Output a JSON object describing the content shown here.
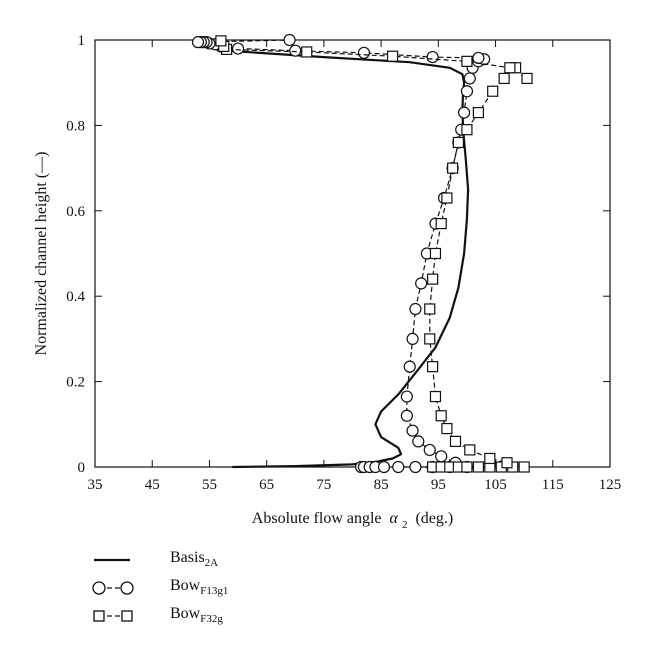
{
  "chart_data": {
    "type": "line",
    "xlabel": "Absolute flow angle",
    "xlabel_symbol": "α",
    "xlabel_subscript": "2",
    "xlabel_unit": "(deg.)",
    "ylabel": "Normalized channel height (—)",
    "xlim": [
      35,
      125
    ],
    "ylim": [
      0,
      1
    ],
    "xticks": [
      "35",
      "45",
      "55",
      "65",
      "75",
      "85",
      "95",
      "105",
      "115",
      "125"
    ],
    "yticks": [
      "0",
      "0.2",
      "0.4",
      "0.6",
      "0.8",
      "1"
    ],
    "grid": false,
    "legend_position": "below",
    "series": [
      {
        "name": "Basis",
        "name_subscript": "2A",
        "marker": "none",
        "line": "solid",
        "x": [
          59,
          70,
          80,
          84,
          87,
          88.5,
          88,
          85,
          84,
          85,
          88,
          91,
          94.5,
          97,
          98.5,
          99.5,
          100,
          100.2,
          99.8,
          99.4,
          99.2,
          99.3,
          99.5,
          99.2,
          97,
          90,
          75,
          58,
          54
        ],
        "y": [
          0.0,
          0.002,
          0.006,
          0.012,
          0.02,
          0.03,
          0.045,
          0.07,
          0.1,
          0.13,
          0.17,
          0.22,
          0.28,
          0.35,
          0.42,
          0.5,
          0.58,
          0.65,
          0.72,
          0.78,
          0.83,
          0.87,
          0.9,
          0.92,
          0.935,
          0.948,
          0.96,
          0.975,
          0.992
        ]
      },
      {
        "name": "Bow",
        "name_subscript": "F13g1",
        "marker": "circle",
        "line": "dashed",
        "x": [
          81.5,
          82,
          83,
          84,
          85.5,
          88,
          91,
          94,
          97,
          100,
          98,
          95.5,
          93.5,
          91.5,
          90.5,
          89.5,
          89.5,
          90,
          90.5,
          91,
          92,
          93,
          94.5,
          96,
          97.5,
          98.5,
          99,
          99.5,
          100,
          100.5,
          101,
          102,
          103,
          102,
          94,
          82,
          70,
          60,
          57,
          56,
          55,
          54.5,
          54,
          53.5,
          53,
          69
        ],
        "y": [
          0.0,
          0.0,
          0.0,
          0.0,
          0.0,
          0.0,
          0.0,
          0.0,
          0.0,
          0.0,
          0.01,
          0.025,
          0.04,
          0.06,
          0.085,
          0.12,
          0.165,
          0.235,
          0.3,
          0.37,
          0.43,
          0.5,
          0.57,
          0.63,
          0.7,
          0.76,
          0.79,
          0.83,
          0.88,
          0.91,
          0.935,
          0.95,
          0.955,
          0.958,
          0.96,
          0.97,
          0.975,
          0.98,
          0.985,
          0.99,
          0.992,
          0.995,
          0.995,
          0.995,
          0.995,
          1.0
        ]
      },
      {
        "name": "Bow",
        "name_subscript": "F32g",
        "marker": "square",
        "line": "dashed",
        "x": [
          94,
          95.5,
          97,
          98.5,
          100,
          102,
          104,
          106,
          108,
          110,
          107,
          104,
          100.5,
          98,
          96.5,
          95.5,
          94.5,
          94,
          93.5,
          93.5,
          94,
          94.5,
          95.5,
          96.5,
          97.5,
          98.5,
          100,
          102,
          104.5,
          106.5,
          108.5,
          110.5,
          107.5,
          100,
          87,
          72,
          58,
          57.5,
          57
        ],
        "y": [
          0.0,
          0.0,
          0.0,
          0.0,
          0.0,
          0.0,
          0.0,
          0.0,
          0.0,
          0.0,
          0.01,
          0.02,
          0.04,
          0.06,
          0.09,
          0.12,
          0.165,
          0.235,
          0.3,
          0.37,
          0.44,
          0.5,
          0.57,
          0.63,
          0.7,
          0.76,
          0.79,
          0.83,
          0.88,
          0.91,
          0.935,
          0.91,
          0.935,
          0.95,
          0.962,
          0.972,
          0.978,
          0.985,
          0.998
        ]
      }
    ]
  }
}
